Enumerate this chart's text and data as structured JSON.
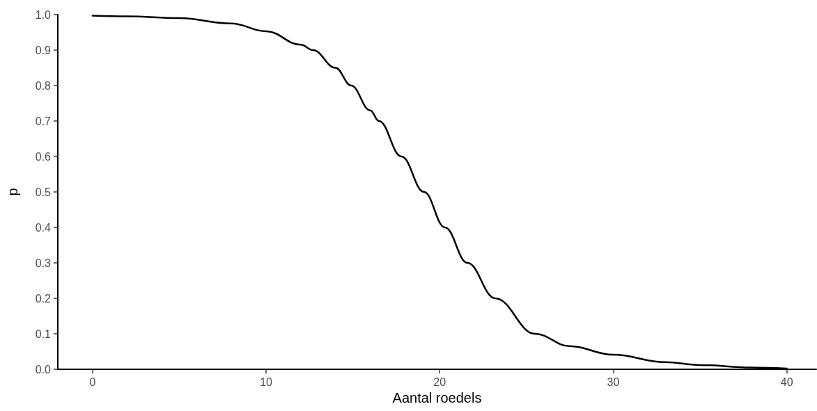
{
  "chart_data": {
    "type": "line",
    "xlabel": "Aantal roedels",
    "ylabel": "p",
    "series": [
      {
        "color": "#000000",
        "x": [
          0,
          2,
          5,
          8,
          10,
          12,
          12.7,
          14,
          14.9,
          16,
          16.5,
          17.8,
          19.1,
          20.3,
          21.6,
          23.2,
          25.5,
          27.5,
          30,
          33,
          35,
          38,
          40
        ],
        "values": [
          0.997,
          0.995,
          0.99,
          0.975,
          0.953,
          0.915,
          0.9,
          0.85,
          0.8,
          0.73,
          0.7,
          0.6,
          0.5,
          0.4,
          0.3,
          0.2,
          0.1,
          0.065,
          0.041,
          0.02,
          0.012,
          0.005,
          0.002
        ]
      }
    ],
    "xlim": [
      -2,
      41.7
    ],
    "xticks": [
      0,
      10,
      20,
      30,
      40
    ],
    "ylim": [
      0,
      1
    ],
    "yticks": [
      {
        "value": 0,
        "label": "0.0"
      },
      {
        "value": 0.1,
        "label": "0.1"
      },
      {
        "value": 0.2,
        "label": "0.2"
      },
      {
        "value": 0.3,
        "label": "0.3"
      },
      {
        "value": 0.4,
        "label": "0.4"
      },
      {
        "value": 0.5,
        "label": "0.5"
      },
      {
        "value": 0.6,
        "label": "0.6"
      },
      {
        "value": 0.7,
        "label": "0.7"
      },
      {
        "value": 0.8,
        "label": "0.8"
      },
      {
        "value": 0.9,
        "label": "0.9"
      },
      {
        "value": 1,
        "label": "1.0"
      }
    ],
    "grid": false,
    "marker": "none",
    "line_style": "solid"
  }
}
